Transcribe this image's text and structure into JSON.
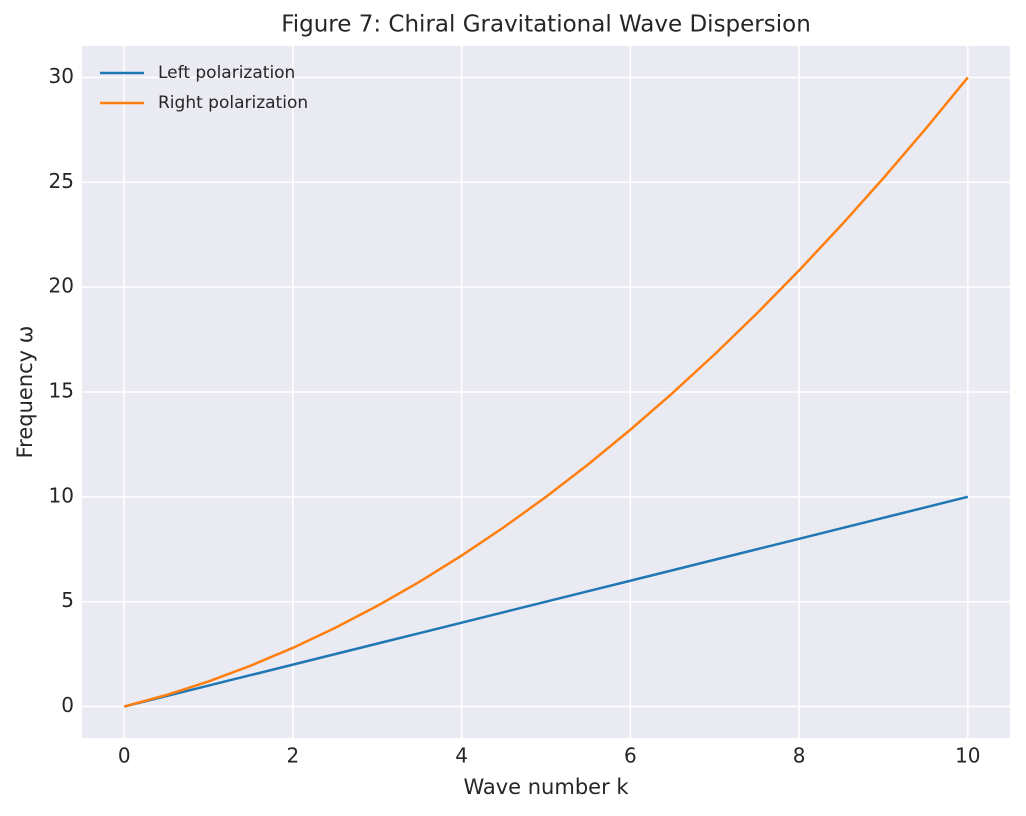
{
  "chart_data": {
    "type": "line",
    "title": "Figure 7: Chiral Gravitational Wave Dispersion",
    "xlabel": "Wave number k",
    "ylabel": "Frequency ω",
    "x": [
      0,
      0.5,
      1,
      1.5,
      2,
      2.5,
      3,
      3.5,
      4,
      4.5,
      5,
      5.5,
      6,
      6.5,
      7,
      7.5,
      8,
      8.5,
      9,
      9.5,
      10
    ],
    "series": [
      {
        "name": "Left polarization",
        "color": "#1f77b4",
        "values": [
          0,
          0.5,
          1,
          1.5,
          2,
          2.5,
          3,
          3.5,
          4,
          4.5,
          5,
          5.5,
          6,
          6.5,
          7,
          7.5,
          8,
          8.5,
          9,
          9.5,
          10
        ]
      },
      {
        "name": "Right polarization",
        "color": "#ff7f0e",
        "values": [
          0,
          0.55,
          1.2,
          1.95,
          2.8,
          3.75,
          4.8,
          5.95,
          7.2,
          8.55,
          10,
          11.55,
          13.2,
          14.95,
          16.8,
          18.75,
          20.8,
          22.95,
          25.2,
          27.55,
          30
        ]
      }
    ],
    "xlim": [
      -0.5,
      10.5
    ],
    "ylim": [
      -1.5,
      31.5
    ],
    "xticks": [
      0,
      2,
      4,
      6,
      8,
      10
    ],
    "yticks": [
      0,
      5,
      10,
      15,
      20,
      25,
      30
    ],
    "grid": true,
    "legend": "upper left"
  }
}
